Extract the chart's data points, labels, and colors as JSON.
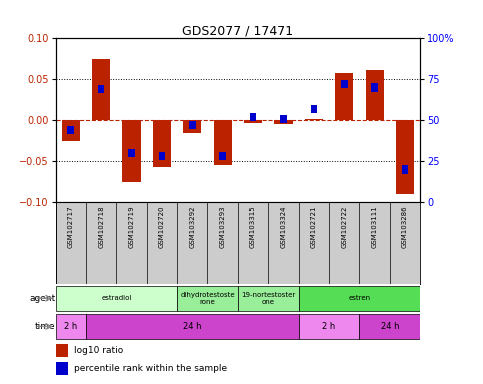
{
  "title": "GDS2077 / 17471",
  "samples": [
    "GSM102717",
    "GSM102718",
    "GSM102719",
    "GSM102720",
    "GSM103292",
    "GSM103293",
    "GSM103315",
    "GSM103324",
    "GSM102721",
    "GSM102722",
    "GSM103111",
    "GSM103286"
  ],
  "log10_ratio": [
    -0.025,
    0.075,
    -0.075,
    -0.057,
    -0.015,
    -0.055,
    -0.003,
    -0.005,
    0.002,
    0.058,
    0.062,
    -0.09
  ],
  "percentile": [
    44,
    69,
    30,
    28,
    47,
    28,
    52,
    51,
    57,
    72,
    70,
    20
  ],
  "bar_color": "#bb2200",
  "pct_color": "#0000cc",
  "ylim": [
    -0.1,
    0.1
  ],
  "pct_ylim": [
    0,
    100
  ],
  "yticks_left": [
    -0.1,
    -0.05,
    0.0,
    0.05,
    0.1
  ],
  "yticks_right": [
    0,
    25,
    50,
    75,
    100
  ],
  "agent_groups": [
    {
      "label": "estradiol",
      "start": 0,
      "end": 4,
      "color": "#ccffcc"
    },
    {
      "label": "dihydrotestoste\nrone",
      "start": 4,
      "end": 6,
      "color": "#99ee99"
    },
    {
      "label": "19-nortestoster\none",
      "start": 6,
      "end": 8,
      "color": "#99ee99"
    },
    {
      "label": "estren",
      "start": 8,
      "end": 12,
      "color": "#55dd55"
    }
  ],
  "time_groups": [
    {
      "label": "2 h",
      "start": 0,
      "end": 1,
      "color": "#ee88ee"
    },
    {
      "label": "24 h",
      "start": 1,
      "end": 8,
      "color": "#cc44cc"
    },
    {
      "label": "2 h",
      "start": 8,
      "end": 10,
      "color": "#ee88ee"
    },
    {
      "label": "24 h",
      "start": 10,
      "end": 12,
      "color": "#cc44cc"
    }
  ],
  "legend_ratio_color": "#bb2200",
  "legend_pct_color": "#0000cc",
  "bg_color": "#ffffff"
}
